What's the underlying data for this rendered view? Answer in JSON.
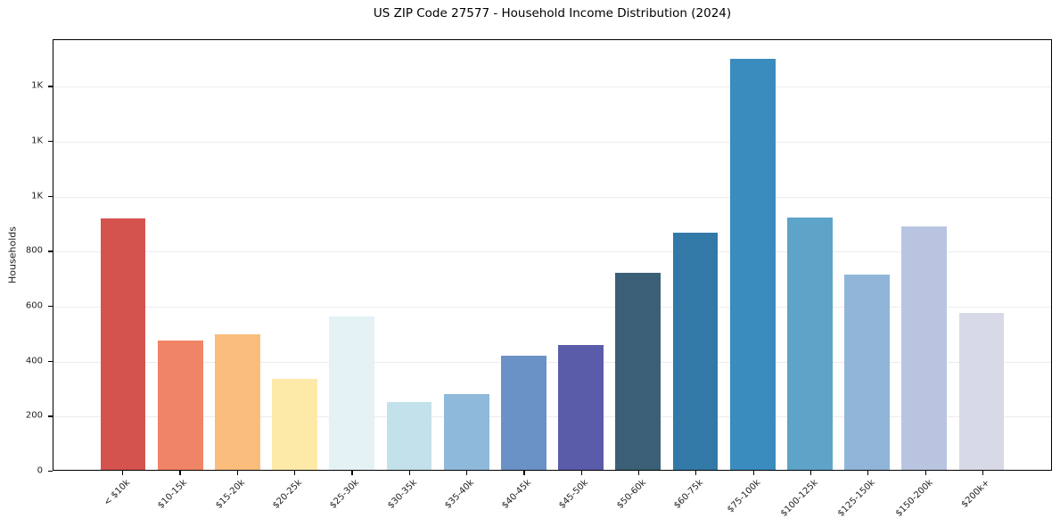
{
  "chart_data": {
    "type": "bar",
    "title": "US ZIP Code 27577 - Household Income Distribution (2024)",
    "xlabel": "",
    "ylabel": "Households",
    "categories": [
      "< $10k",
      "$10-15k",
      "$15-20k",
      "$20-25k",
      "$25-30k",
      "$30-35k",
      "$35-40k",
      "$40-45k",
      "$45-50k",
      "$50-60k",
      "$60-75k",
      "$75-100k",
      "$100-125k",
      "$125-150k",
      "$150-200k",
      "$200k+"
    ],
    "values": [
      915,
      472,
      494,
      332,
      558,
      247,
      276,
      416,
      454,
      717,
      864,
      1495,
      917,
      709,
      884,
      570
    ],
    "bar_colors": [
      "#d5534f",
      "#f08466",
      "#fbbd7c",
      "#fdeaa8",
      "#e4f2f5",
      "#c3e1eb",
      "#8fb9da",
      "#6b92c6",
      "#5a5caa",
      "#3a5f76",
      "#3379a8",
      "#3a8bbe",
      "#5ea4c9",
      "#90b5d8",
      "#b9c5e0",
      "#d8d9e6"
    ],
    "ylim": [
      0,
      1570
    ],
    "yticks": {
      "values": [
        0,
        200,
        400,
        600,
        800,
        1000,
        1200,
        1400
      ],
      "labels": [
        "0",
        "200",
        "400",
        "600",
        "800",
        "1K",
        "1K",
        "1K"
      ]
    },
    "x_tick_rotation_deg": 45,
    "grid": "horizontal",
    "gridline_color": "#ececec",
    "legend": "none",
    "background_color": "#ffffff",
    "axis_color": "#000000"
  }
}
